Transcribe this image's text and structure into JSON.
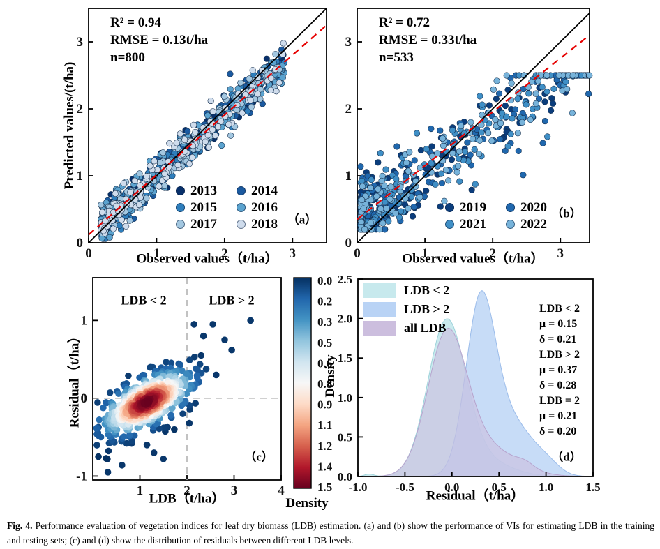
{
  "caption": {
    "tag": "Fig. 4.",
    "text": " Performance evaluation of vegetation indices for leaf dry biomass (LDB) estimation. (a) and (b) show the performance of VIs for estimating LDB in the training and testing sets; (c) and (d) show the distribution of residuals between different LDB levels."
  },
  "chart_data": [
    {
      "id": "a",
      "type": "scatter",
      "panel_label": "（a）",
      "stats": [
        "R² = 0.94",
        "RMSE = 0.13t/ha",
        "n=800"
      ],
      "xlabel": "Observed values（t/ha）",
      "ylabel": "Predicted values/(t/ha)",
      "xlim": [
        0,
        3.5
      ],
      "ylim": [
        0,
        3.5
      ],
      "xticks": {
        "values": [
          0,
          1,
          2,
          3
        ],
        "labels": [
          "0",
          "1",
          "2",
          "3"
        ]
      },
      "yticks": {
        "values": [
          0,
          1,
          2,
          3
        ],
        "labels": [
          "0",
          "1",
          "2",
          "3"
        ]
      },
      "identity_line": [
        [
          0,
          0
        ],
        [
          3.5,
          3.5
        ]
      ],
      "regression_line": {
        "from": [
          0,
          0.12
        ],
        "to": [
          3.5,
          3.25
        ],
        "color": "#e60000",
        "style": "dashed"
      },
      "series": [
        {
          "name": "2013",
          "color": "#08306b"
        },
        {
          "name": "2014",
          "color": "#1b5aa0"
        },
        {
          "name": "2015",
          "color": "#2e7ebc"
        },
        {
          "name": "2016",
          "color": "#5ba3cf"
        },
        {
          "name": "2017",
          "color": "#a3c7e0"
        },
        {
          "name": "2018",
          "color": "#cfdcec"
        }
      ],
      "distribution": {
        "n_per_series": 133,
        "x_offset": 0.18,
        "x_span": 2.7,
        "x_pow": 1.35,
        "intercept": 0.1,
        "slope": 0.9,
        "noise_sd": 0.14,
        "y_clamp": [
          0.06,
          3.35
        ]
      }
    },
    {
      "id": "b",
      "type": "scatter",
      "panel_label": "（b）",
      "stats": [
        "R² = 0.72",
        "RMSE = 0.33t/ha",
        "n=533"
      ],
      "xlabel": "Observed values（t/ha）",
      "ylabel": "",
      "xlim": [
        0,
        3.43
      ],
      "ylim": [
        0,
        3.5
      ],
      "xticks": {
        "values": [
          0,
          1,
          2,
          3
        ],
        "labels": [
          "0",
          "1",
          "2",
          "3"
        ]
      },
      "yticks": {
        "values": [
          0,
          1,
          2,
          3
        ],
        "labels": [
          "0",
          "1",
          "2",
          "3"
        ]
      },
      "identity_line": [
        [
          0,
          0
        ],
        [
          3.43,
          3.43
        ]
      ],
      "regression_line": {
        "from": [
          0,
          0.35
        ],
        "to": [
          3.43,
          3.1
        ],
        "color": "#e60000",
        "style": "dashed"
      },
      "series": [
        {
          "name": "2019",
          "color": "#0b3d7c"
        },
        {
          "name": "2020",
          "color": "#2068ae"
        },
        {
          "name": "2021",
          "color": "#3f8fc6"
        },
        {
          "name": "2022",
          "color": "#77b3da"
        }
      ],
      "distribution": {
        "n_per_series": 133,
        "x_offset": 0.05,
        "x_span": 3.38,
        "x_pow": 2.2,
        "intercept": 0.32,
        "slope": 0.74,
        "noise_sd": 0.3,
        "y_clamp": [
          0.2,
          2.5
        ]
      }
    },
    {
      "id": "c",
      "type": "scatter-density",
      "panel_label": "（c）",
      "annotations": [
        "LDB < 2",
        "LDB > 2"
      ],
      "xlabel": "LDB（t/ha）",
      "ylabel": "Residual（t/ha）",
      "xlim": [
        0,
        4
      ],
      "ylim": [
        -1.05,
        1.55
      ],
      "xticks": {
        "values": [
          1,
          2,
          3,
          4
        ],
        "labels": [
          "1",
          "2",
          "3",
          "4"
        ]
      },
      "yticks": {
        "values": [
          -1,
          0,
          1
        ],
        "labels": [
          "-1",
          "0",
          "1"
        ]
      },
      "dashed_lines": {
        "vertical_x": 2,
        "horizontal_y": 0,
        "color": "#b3b3b3"
      },
      "distribution": {
        "n": 560,
        "center": [
          1.15,
          -0.05
        ],
        "trend_slope": 0.3,
        "sd_major": 0.52,
        "sd_minor": 0.16,
        "density_range": [
          0,
          1.5
        ]
      },
      "outliers": [
        [
          2.15,
          0.95
        ],
        [
          2.35,
          0.8
        ],
        [
          2.55,
          0.95
        ],
        [
          2.8,
          0.75
        ],
        [
          3.35,
          1.0
        ],
        [
          2.95,
          0.62
        ],
        [
          2.3,
          0.55
        ],
        [
          2.62,
          0.3
        ],
        [
          2.05,
          -0.32
        ],
        [
          1.5,
          -0.78
        ],
        [
          0.32,
          -0.95
        ],
        [
          0.62,
          -0.86
        ],
        [
          1.15,
          -0.6
        ],
        [
          1.3,
          -0.7
        ]
      ],
      "colorbar": {
        "title": "Density",
        "range": [
          0,
          1.5
        ],
        "ticks": [
          "0.0",
          "0.2",
          "0.3",
          "0.5",
          "0.6",
          "0.8",
          "0.9",
          "1.1",
          "1.2",
          "1.4",
          "1.5"
        ],
        "colormap": [
          {
            "p": 0.0,
            "c": "#053061"
          },
          {
            "p": 0.1,
            "c": "#2166ac"
          },
          {
            "p": 0.2,
            "c": "#4393c3"
          },
          {
            "p": 0.3,
            "c": "#92c5de"
          },
          {
            "p": 0.4,
            "c": "#d1e5f0"
          },
          {
            "p": 0.5,
            "c": "#f7f7f7"
          },
          {
            "p": 0.6,
            "c": "#fddbc7"
          },
          {
            "p": 0.7,
            "c": "#f4a582"
          },
          {
            "p": 0.8,
            "c": "#d6604d"
          },
          {
            "p": 0.9,
            "c": "#b2182b"
          },
          {
            "p": 1.0,
            "c": "#67001f"
          }
        ]
      }
    },
    {
      "id": "d",
      "type": "area-kde",
      "panel_label": "（d）",
      "xlabel": "Residual（t/ha）",
      "ylabel": "Density",
      "xlim": [
        -1.0,
        1.5
      ],
      "ylim": [
        0,
        2.5
      ],
      "xticks": {
        "values": [
          -1,
          -0.5,
          0,
          0.5,
          1,
          1.5
        ],
        "labels": [
          "-1.0",
          "-0.5",
          "0.0",
          "0.5",
          "1.0",
          "1.5"
        ]
      },
      "yticks": {
        "values": [
          0,
          0.5,
          1,
          1.5,
          2,
          2.5
        ],
        "labels": [
          "0.0",
          "0.5",
          "1.0",
          "1.5",
          "2.0",
          "2.5"
        ]
      },
      "stats": [
        "LDB < 2",
        "μ = 0.15",
        "δ = 0.21",
        "LDB > 2",
        "μ = 0.37",
        "δ = 0.28",
        "LDB = 2",
        "μ = 0.21",
        "δ = 0.20"
      ],
      "legend": [
        {
          "label": "LDB < 2",
          "color": "#c7e9ed"
        },
        {
          "label": "LDB > 2",
          "color": "#b9d3f5"
        },
        {
          "label": "all LDB",
          "color": "#ccbede"
        }
      ],
      "curves": [
        {
          "name": "LDB < 2",
          "fill": "#c7e9ed",
          "stroke": "#9ed2da",
          "opacity": 0.95,
          "components": [
            {
              "mu": -0.06,
              "sigma": 0.2,
              "amp": 1.88
            },
            {
              "mu": 0.28,
              "sigma": 0.3,
              "amp": 0.22
            },
            {
              "mu": -0.88,
              "sigma": 0.05,
              "amp": 0.03
            }
          ]
        },
        {
          "name": "LDB > 2",
          "fill": "#b9d3f5",
          "stroke": "#9bbcea",
          "opacity": 0.8,
          "components": [
            {
              "mu": 0.3,
              "sigma": 0.155,
              "amp": 2.05
            },
            {
              "mu": 0.62,
              "sigma": 0.24,
              "amp": 0.7
            },
            {
              "mu": 1.02,
              "sigma": 0.13,
              "amp": 0.1
            }
          ]
        },
        {
          "name": "all LDB",
          "fill": "#ccbede",
          "stroke": "#b6a3cd",
          "opacity": 0.62,
          "components": [
            {
              "mu": -0.055,
              "sigma": 0.205,
              "amp": 1.68
            },
            {
              "mu": 0.33,
              "sigma": 0.33,
              "amp": 0.38
            },
            {
              "mu": 0.78,
              "sigma": 0.09,
              "amp": 0.06
            }
          ]
        }
      ]
    }
  ]
}
